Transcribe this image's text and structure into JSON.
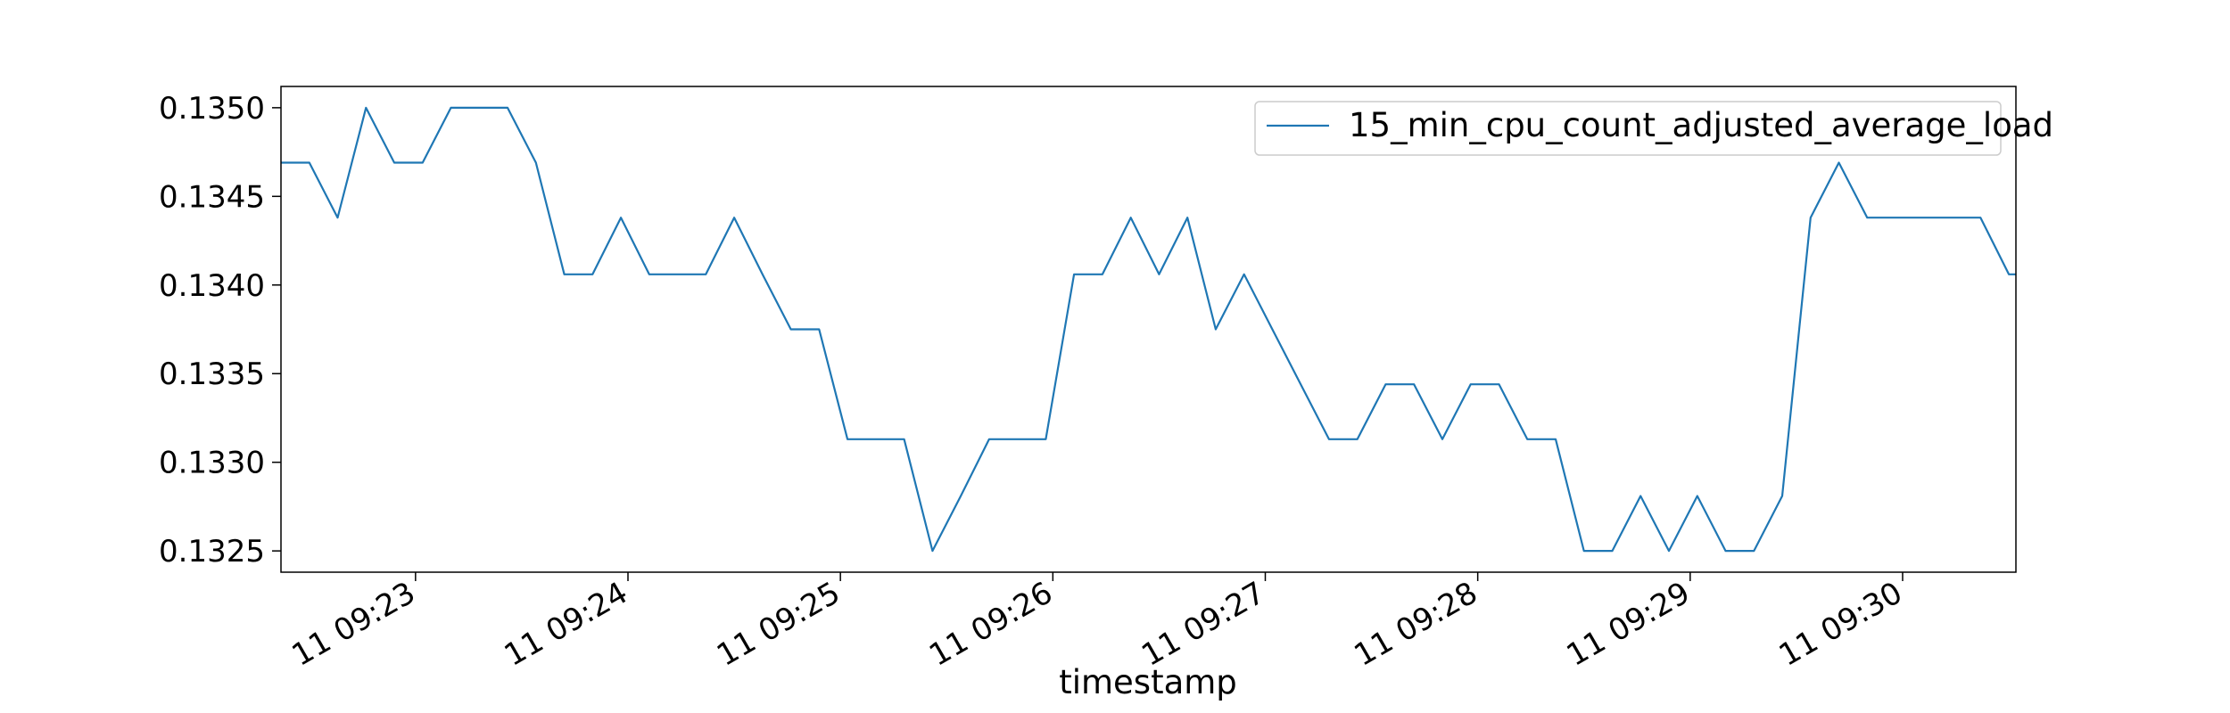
{
  "chart_data": {
    "type": "line",
    "xlabel": "timestamp",
    "ylabel": "",
    "ylim": [
      0.13238,
      0.13512
    ],
    "y_ticks": [
      "0.1325",
      "0.1330",
      "0.1335",
      "0.1340",
      "0.1345",
      "0.1350"
    ],
    "x_ticks": [
      "11 09:23",
      "11 09:24",
      "11 09:25",
      "11 09:26",
      "11 09:27",
      "11 09:28",
      "11 09:29",
      "11 09:30"
    ],
    "x_range_minutes": [
      "09:22:22",
      "09:30:32"
    ],
    "legend_position": "top-right",
    "grid": false,
    "series": [
      {
        "name": "15_min_cpu_count_adjusted_average_load",
        "color": "#1f77b4",
        "x": [
          "09:22:22",
          "09:22:30",
          "09:22:38",
          "09:22:46",
          "09:22:54",
          "09:23:02",
          "09:23:10",
          "09:23:18",
          "09:23:26",
          "09:23:34",
          "09:23:42",
          "09:23:50",
          "09:23:58",
          "09:24:06",
          "09:24:14",
          "09:24:22",
          "09:24:30",
          "09:24:38",
          "09:24:46",
          "09:24:54",
          "09:25:02",
          "09:25:10",
          "09:25:18",
          "09:25:26",
          "09:25:34",
          "09:25:42",
          "09:25:50",
          "09:25:58",
          "09:26:06",
          "09:26:14",
          "09:26:22",
          "09:26:30",
          "09:26:38",
          "09:26:46",
          "09:26:54",
          "09:27:02",
          "09:27:10",
          "09:27:18",
          "09:27:26",
          "09:27:34",
          "09:27:42",
          "09:27:50",
          "09:27:58",
          "09:28:06",
          "09:28:14",
          "09:28:22",
          "09:28:30",
          "09:28:38",
          "09:28:46",
          "09:28:54",
          "09:29:02",
          "09:29:10",
          "09:29:18",
          "09:29:26",
          "09:29:34",
          "09:29:42",
          "09:29:50",
          "09:29:58",
          "09:30:06",
          "09:30:14",
          "09:30:22",
          "09:30:30",
          "09:30:32"
        ],
        "values": [
          0.13469,
          0.13469,
          0.13438,
          0.135,
          0.13469,
          0.13469,
          0.135,
          0.135,
          0.135,
          0.13469,
          0.13406,
          0.13406,
          0.13438,
          0.13406,
          0.13406,
          0.13406,
          0.13438,
          0.13406,
          0.13375,
          0.13375,
          0.13313,
          0.13313,
          0.13313,
          0.1325,
          0.13281,
          0.13313,
          0.13313,
          0.13313,
          0.13406,
          0.13406,
          0.13438,
          0.13406,
          0.13438,
          0.13375,
          0.13406,
          0.13375,
          0.13344,
          0.13313,
          0.13313,
          0.13344,
          0.13344,
          0.13313,
          0.13344,
          0.13344,
          0.13313,
          0.13313,
          0.1325,
          0.1325,
          0.13281,
          0.1325,
          0.13281,
          0.1325,
          0.1325,
          0.13281,
          0.13438,
          0.13469,
          0.13438,
          0.13438,
          0.13438,
          0.13438,
          0.13438,
          0.13406,
          0.13406
        ]
      }
    ]
  }
}
